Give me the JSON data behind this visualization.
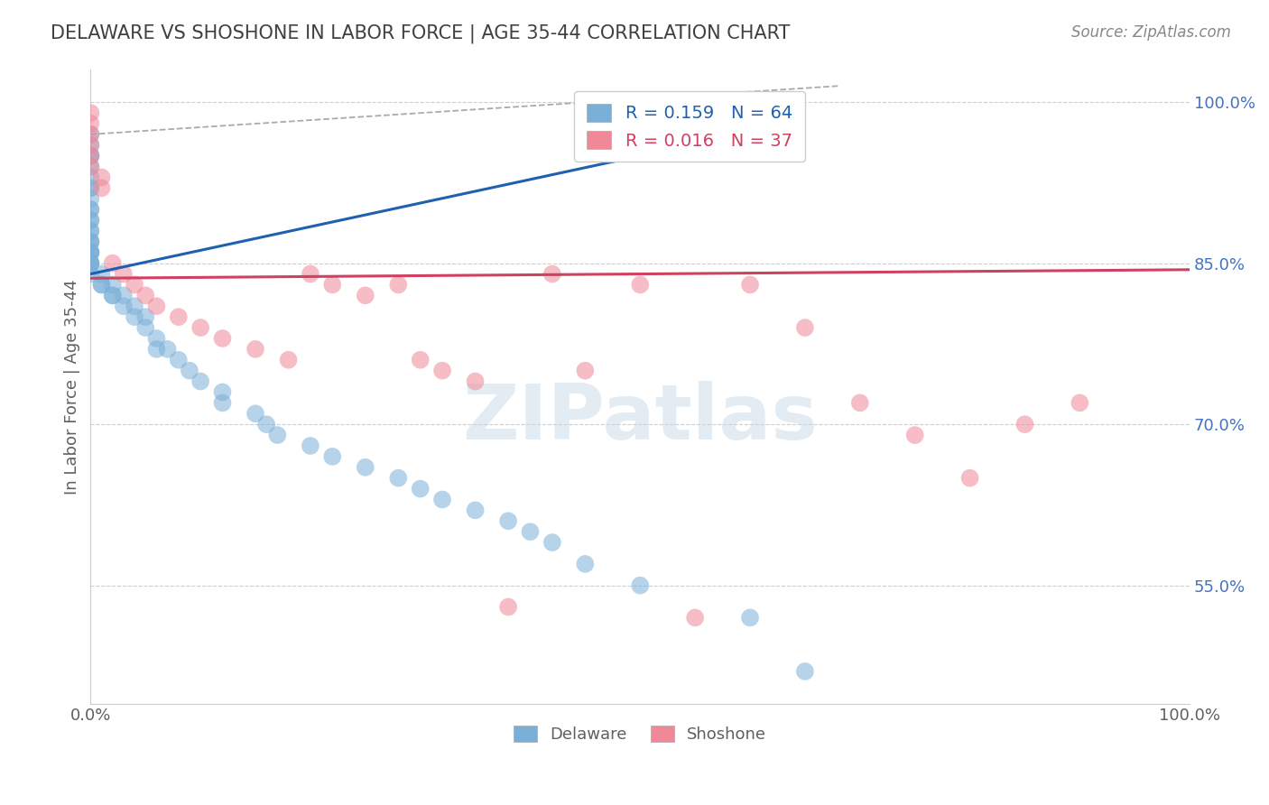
{
  "title": "DELAWARE VS SHOSHONE IN LABOR FORCE | AGE 35-44 CORRELATION CHART",
  "source_text": "Source: ZipAtlas.com",
  "ylabel": "In Labor Force | Age 35-44",
  "watermark": "ZIPatlas",
  "del_color": "#7ab0d8",
  "sho_color": "#f08898",
  "del_line_color": "#2060b0",
  "sho_line_color": "#d04060",
  "bg_color": "#ffffff",
  "grid_color": "#c8c8c8",
  "title_color": "#404040",
  "axis_label_color": "#606060",
  "tick_color": "#606060",
  "x_min": 0.0,
  "x_max": 1.0,
  "y_min": 0.44,
  "y_max": 1.03,
  "delaware_x": [
    0.0,
    0.0,
    0.0,
    0.0,
    0.0,
    0.0,
    0.0,
    0.0,
    0.0,
    0.0,
    0.0,
    0.0,
    0.0,
    0.0,
    0.0,
    0.0,
    0.0,
    0.0,
    0.0,
    0.0,
    0.0,
    0.0,
    0.0,
    0.0,
    0.0,
    0.0,
    0.0,
    0.01,
    0.01,
    0.01,
    0.02,
    0.02,
    0.02,
    0.03,
    0.03,
    0.04,
    0.04,
    0.05,
    0.05,
    0.06,
    0.06,
    0.07,
    0.08,
    0.09,
    0.1,
    0.12,
    0.12,
    0.15,
    0.16,
    0.17,
    0.2,
    0.22,
    0.25,
    0.28,
    0.3,
    0.32,
    0.35,
    0.38,
    0.4,
    0.42,
    0.45,
    0.5,
    0.6,
    0.65
  ],
  "delaware_y": [
    0.97,
    0.96,
    0.95,
    0.95,
    0.94,
    0.93,
    0.92,
    0.92,
    0.91,
    0.9,
    0.9,
    0.89,
    0.89,
    0.88,
    0.88,
    0.87,
    0.87,
    0.87,
    0.86,
    0.86,
    0.86,
    0.86,
    0.85,
    0.85,
    0.85,
    0.85,
    0.84,
    0.84,
    0.83,
    0.83,
    0.83,
    0.82,
    0.82,
    0.82,
    0.81,
    0.81,
    0.8,
    0.8,
    0.79,
    0.78,
    0.77,
    0.77,
    0.76,
    0.75,
    0.74,
    0.73,
    0.72,
    0.71,
    0.7,
    0.69,
    0.68,
    0.67,
    0.66,
    0.65,
    0.64,
    0.63,
    0.62,
    0.61,
    0.6,
    0.59,
    0.57,
    0.55,
    0.52,
    0.47
  ],
  "shoshone_x": [
    0.0,
    0.0,
    0.0,
    0.0,
    0.0,
    0.0,
    0.01,
    0.01,
    0.02,
    0.03,
    0.04,
    0.05,
    0.06,
    0.08,
    0.1,
    0.12,
    0.15,
    0.18,
    0.2,
    0.22,
    0.25,
    0.28,
    0.3,
    0.32,
    0.35,
    0.38,
    0.42,
    0.45,
    0.5,
    0.55,
    0.6,
    0.65,
    0.7,
    0.75,
    0.8,
    0.85,
    0.9
  ],
  "shoshone_y": [
    0.99,
    0.98,
    0.97,
    0.96,
    0.95,
    0.94,
    0.93,
    0.92,
    0.85,
    0.84,
    0.83,
    0.82,
    0.81,
    0.8,
    0.79,
    0.78,
    0.77,
    0.76,
    0.84,
    0.83,
    0.82,
    0.83,
    0.76,
    0.75,
    0.74,
    0.53,
    0.84,
    0.75,
    0.83,
    0.52,
    0.83,
    0.79,
    0.72,
    0.69,
    0.65,
    0.7,
    0.72
  ],
  "del_line_x": [
    0.0,
    0.5
  ],
  "del_line_y": [
    0.84,
    0.95
  ],
  "sho_line_x": [
    0.0,
    1.0
  ],
  "sho_line_y": [
    0.836,
    0.844
  ],
  "ref_line_x": [
    0.0,
    0.68
  ],
  "ref_line_y": [
    0.97,
    1.015
  ],
  "legend1_labels": [
    "R = 0.159   N = 64",
    "R = 0.016   N = 37"
  ],
  "legend2_labels": [
    "Delaware",
    "Shoshone"
  ],
  "x_ticks": [
    0.0,
    1.0
  ],
  "x_tick_labels": [
    "0.0%",
    "100.0%"
  ],
  "y_ticks": [
    0.55,
    0.7,
    0.85,
    1.0
  ],
  "y_tick_labels": [
    "55.0%",
    "70.0%",
    "85.0%",
    "100.0%"
  ]
}
